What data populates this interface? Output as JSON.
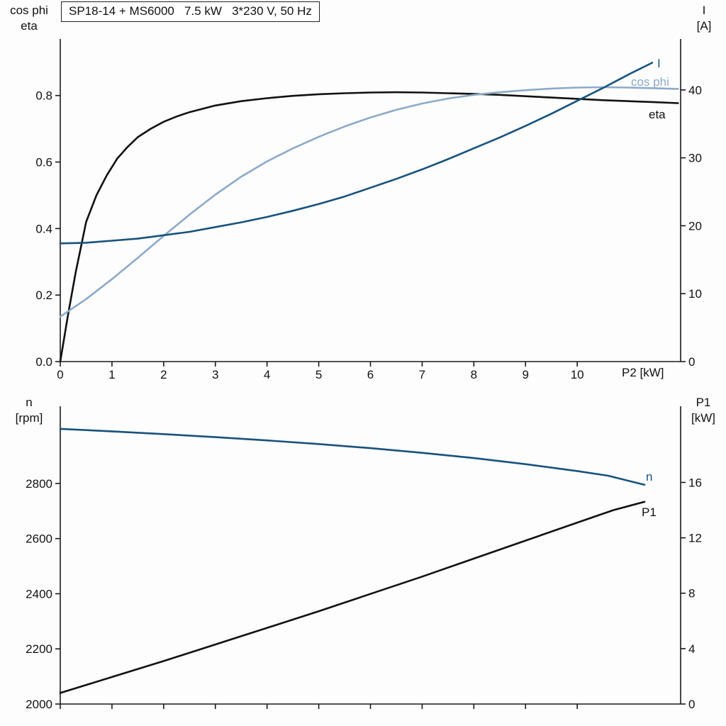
{
  "page": {
    "background": "#fdfdfd"
  },
  "header": {
    "title": "SP18-14 + MS6000   7.5 kW   3*230 V, 50 Hz"
  },
  "colors": {
    "axis": "#1a1a1a",
    "tick_text": "#111111",
    "eta": "#111111",
    "cos_phi": "#8caac9",
    "current": "#17527d",
    "speed": "#17527d",
    "p1": "#111111"
  },
  "chart_data": [
    {
      "id": "top",
      "type": "line",
      "title": "SP18-14 + MS6000   7.5 kW   3*230 V, 50 Hz",
      "grid": false,
      "x_axis": {
        "label": "P2 [kW]",
        "min": 0,
        "max": 12,
        "ticks": [
          0,
          1,
          2,
          3,
          4,
          5,
          6,
          7,
          8,
          9,
          10
        ],
        "tick_labels": [
          "0",
          "1",
          "2",
          "3",
          "4",
          "5",
          "6",
          "7",
          "8",
          "9",
          "10"
        ]
      },
      "y_left": {
        "name_lines": [
          "cos phi",
          "eta"
        ],
        "min": 0,
        "max": 0.97,
        "ticks": [
          0,
          0.2,
          0.4,
          0.6,
          0.8
        ],
        "tick_labels": [
          "0.0",
          "0.2",
          "0.4",
          "0.6",
          "0.8"
        ]
      },
      "y_right": {
        "name_lines": [
          "I",
          "[A]"
        ],
        "min": 0,
        "max": 47.5,
        "ticks": [
          0,
          10,
          20,
          30,
          40
        ],
        "tick_labels": [
          "0",
          "10",
          "20",
          "30",
          "40"
        ]
      },
      "series": [
        {
          "name": "eta",
          "axis": "left",
          "color_key": "eta",
          "points": [
            [
              0,
              0
            ],
            [
              0.15,
              0.14
            ],
            [
              0.3,
              0.27
            ],
            [
              0.5,
              0.42
            ],
            [
              0.7,
              0.5
            ],
            [
              0.9,
              0.56
            ],
            [
              1.1,
              0.61
            ],
            [
              1.3,
              0.645
            ],
            [
              1.5,
              0.675
            ],
            [
              1.75,
              0.7
            ],
            [
              2,
              0.721
            ],
            [
              2.25,
              0.737
            ],
            [
              2.5,
              0.75
            ],
            [
              3,
              0.77
            ],
            [
              3.5,
              0.783
            ],
            [
              4,
              0.792
            ],
            [
              4.5,
              0.799
            ],
            [
              5,
              0.804
            ],
            [
              5.5,
              0.807
            ],
            [
              6,
              0.809
            ],
            [
              6.5,
              0.81
            ],
            [
              7,
              0.809
            ],
            [
              7.5,
              0.807
            ],
            [
              8,
              0.805
            ],
            [
              8.5,
              0.802
            ],
            [
              9,
              0.798
            ],
            [
              9.5,
              0.794
            ],
            [
              10,
              0.79
            ],
            [
              10.5,
              0.786
            ],
            [
              11,
              0.783
            ],
            [
              11.5,
              0.78
            ],
            [
              11.95,
              0.777
            ]
          ]
        },
        {
          "name": "cos phi",
          "axis": "left",
          "color_key": "cos_phi",
          "points": [
            [
              0,
              0.135
            ],
            [
              0.5,
              0.188
            ],
            [
              1,
              0.248
            ],
            [
              1.5,
              0.312
            ],
            [
              2,
              0.378
            ],
            [
              2.5,
              0.442
            ],
            [
              3,
              0.502
            ],
            [
              3.5,
              0.556
            ],
            [
              4,
              0.602
            ],
            [
              4.5,
              0.641
            ],
            [
              5,
              0.676
            ],
            [
              5.5,
              0.707
            ],
            [
              6,
              0.734
            ],
            [
              6.5,
              0.757
            ],
            [
              7,
              0.776
            ],
            [
              7.5,
              0.791
            ],
            [
              8,
              0.802
            ],
            [
              8.5,
              0.81
            ],
            [
              9,
              0.816
            ],
            [
              9.5,
              0.821
            ],
            [
              10,
              0.824
            ],
            [
              10.5,
              0.825
            ],
            [
              11,
              0.824
            ],
            [
              11.5,
              0.822
            ],
            [
              11.95,
              0.82
            ]
          ]
        },
        {
          "name": "I",
          "axis": "right",
          "color_key": "current",
          "points": [
            [
              0,
              17.4
            ],
            [
              0.5,
              17.5
            ],
            [
              1,
              17.8
            ],
            [
              1.5,
              18.1
            ],
            [
              2,
              18.6
            ],
            [
              2.5,
              19.1
            ],
            [
              3,
              19.8
            ],
            [
              3.5,
              20.5
            ],
            [
              4,
              21.3
            ],
            [
              4.5,
              22.2
            ],
            [
              5,
              23.2
            ],
            [
              5.5,
              24.3
            ],
            [
              6,
              25.6
            ],
            [
              6.5,
              26.9
            ],
            [
              7,
              28.3
            ],
            [
              7.5,
              29.8
            ],
            [
              8,
              31.4
            ],
            [
              8.5,
              33
            ],
            [
              9,
              34.7
            ],
            [
              9.5,
              36.5
            ],
            [
              10,
              38.4
            ],
            [
              10.5,
              40.3
            ],
            [
              11,
              42.3
            ],
            [
              11.45,
              44
            ]
          ]
        }
      ]
    },
    {
      "id": "bottom",
      "type": "line",
      "grid": false,
      "x_axis": {
        "label": "",
        "min": 0,
        "max": 12,
        "ticks": [
          0,
          1,
          2,
          3,
          4,
          5,
          6,
          7,
          8,
          9,
          10
        ],
        "tick_labels": []
      },
      "y_left": {
        "name_lines": [
          "n",
          "[rpm]"
        ],
        "min": 2000,
        "max": 3080,
        "ticks": [
          2000,
          2200,
          2400,
          2600,
          2800
        ],
        "tick_labels": [
          "2000",
          "2200",
          "2400",
          "2600",
          "2800"
        ]
      },
      "y_right": {
        "name_lines": [
          "P1",
          "[kW]"
        ],
        "min": 0,
        "max": 21.5,
        "ticks": [
          0,
          4,
          8,
          12,
          16
        ],
        "tick_labels": [
          "0",
          "4",
          "8",
          "12",
          "16"
        ]
      },
      "series": [
        {
          "name": "n",
          "axis": "left",
          "color_key": "speed",
          "points": [
            [
              0,
              2998
            ],
            [
              1,
              2989
            ],
            [
              2,
              2979
            ],
            [
              3,
              2968
            ],
            [
              4,
              2956
            ],
            [
              5,
              2943
            ],
            [
              6,
              2928
            ],
            [
              7,
              2911
            ],
            [
              8,
              2892
            ],
            [
              9,
              2870
            ],
            [
              10,
              2845
            ],
            [
              10.6,
              2828
            ],
            [
              11.3,
              2795
            ]
          ]
        },
        {
          "name": "P1",
          "axis": "right",
          "color_key": "p1",
          "points": [
            [
              0,
              0.8
            ],
            [
              1,
              1.95
            ],
            [
              2,
              3.1
            ],
            [
              3,
              4.3
            ],
            [
              4,
              5.5
            ],
            [
              5,
              6.7
            ],
            [
              6,
              7.95
            ],
            [
              7,
              9.2
            ],
            [
              8,
              10.5
            ],
            [
              9,
              11.8
            ],
            [
              10,
              13.1
            ],
            [
              10.7,
              14
            ],
            [
              11.3,
              14.6
            ]
          ]
        }
      ]
    }
  ]
}
